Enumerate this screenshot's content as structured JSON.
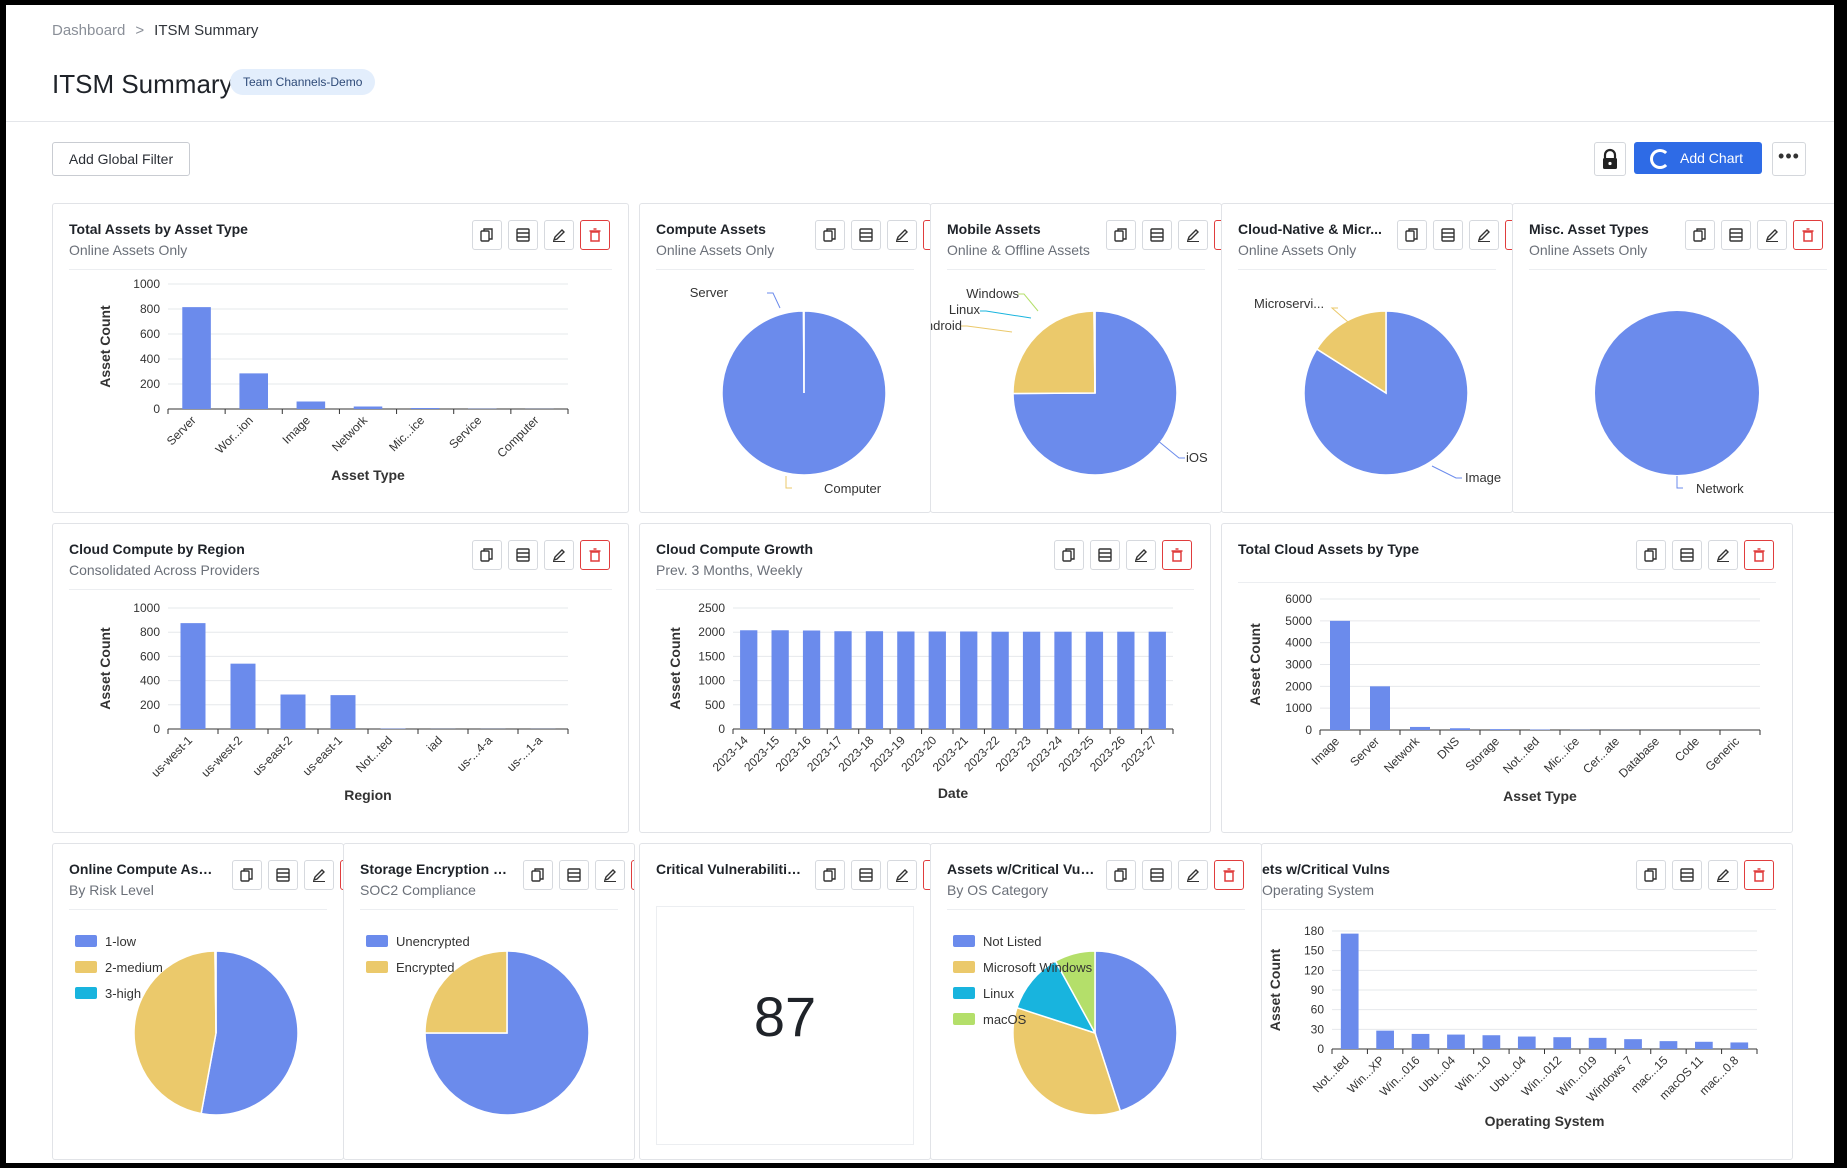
{
  "breadcrumb": {
    "root": "Dashboard",
    "separator": ">",
    "current": "ITSM Summary"
  },
  "header": {
    "title": "ITSM Summary",
    "badge": "Team Channels-Demo"
  },
  "toolbar": {
    "global_filter": "Add Global Filter",
    "add_chart": "Add Chart",
    "more": "•••"
  },
  "colors": {
    "blue": "#6b8bec",
    "yellow": "#ebc96b",
    "cyan": "#18b4de",
    "green": "#b4df6a",
    "delete": "#e03d3d",
    "primary": "#2e6be6"
  },
  "icons": {
    "copy": "copy-icon",
    "table": "table-icon",
    "edit": "pencil-icon",
    "delete": "trash-icon",
    "lock": "lock-icon"
  },
  "cards": {
    "c1": {
      "title": "Total Assets by Asset Type",
      "subtitle": "Online Assets Only",
      "chart_data": {
        "type": "bar",
        "categories": [
          "Server",
          "Wor...ion",
          "Image",
          "Network",
          "Mic...ice",
          "Service",
          "Computer"
        ],
        "values": [
          815,
          285,
          60,
          20,
          8,
          2,
          1
        ],
        "ylim": [
          0,
          1000
        ],
        "yticks": [
          0,
          200,
          400,
          600,
          800,
          1000
        ],
        "ylabel": "Asset Count",
        "xlabel": "Asset Type",
        "grid": true
      }
    },
    "c2": {
      "title": "Compute Assets",
      "subtitle": "Online Assets Only",
      "chart_data": {
        "type": "pie",
        "labels": [
          "Server",
          "Computer"
        ],
        "values": [
          999,
          1
        ]
      }
    },
    "c3": {
      "title": "Mobile Assets",
      "subtitle": "Online & Offline Assets",
      "chart_data": {
        "type": "pie",
        "labels": [
          "iOS",
          "Android",
          "Linux",
          "Windows"
        ],
        "values": [
          749,
          249,
          1,
          1
        ]
      }
    },
    "c4": {
      "title": "Cloud-Native & Micr...",
      "subtitle": "Online Assets Only",
      "chart_data": {
        "type": "pie",
        "labels": [
          "Image",
          "Microservi..."
        ],
        "values": [
          84,
          16
        ]
      }
    },
    "c5": {
      "title": "Misc. Asset Types",
      "subtitle": "Online Assets Only",
      "chart_data": {
        "type": "pie",
        "labels": [
          "Network"
        ],
        "values": [
          100
        ]
      }
    },
    "c6": {
      "title": "Cloud Compute by Region",
      "subtitle": "Consolidated Across Providers",
      "chart_data": {
        "type": "bar",
        "categories": [
          "us-west-1",
          "us-west-2",
          "us-east-2",
          "us-east-1",
          "Not...ted",
          "iad",
          "us-...4-a",
          "us-...1-a"
        ],
        "values": [
          875,
          540,
          285,
          280,
          3,
          1,
          1,
          1
        ],
        "ylim": [
          0,
          1000
        ],
        "yticks": [
          0,
          200,
          400,
          600,
          800,
          1000
        ],
        "ylabel": "Asset Count",
        "xlabel": "Region",
        "grid": true
      }
    },
    "c7": {
      "title": "Cloud Compute Growth",
      "subtitle": "Prev. 3 Months, Weekly",
      "chart_data": {
        "type": "bar",
        "categories": [
          "2023-14",
          "2023-15",
          "2023-16",
          "2023-17",
          "2023-18",
          "2023-19",
          "2023-20",
          "2023-21",
          "2023-22",
          "2023-23",
          "2023-24",
          "2023-25",
          "2023-26",
          "2023-27"
        ],
        "values": [
          2040,
          2040,
          2035,
          2020,
          2020,
          2015,
          2015,
          2015,
          2010,
          2010,
          2010,
          2010,
          2010,
          2010
        ],
        "ylim": [
          0,
          2500
        ],
        "yticks": [
          0,
          500,
          1000,
          1500,
          2000,
          2500
        ],
        "ylabel": "Asset Count",
        "xlabel": "Date",
        "grid": true
      }
    },
    "c8": {
      "title": "Total Cloud Assets by Type",
      "subtitle": "",
      "chart_data": {
        "type": "bar",
        "categories": [
          "Image",
          "Server",
          "Network",
          "DNS",
          "Storage",
          "Not...ted",
          "Mic...ice",
          "Cer...ate",
          "Database",
          "Code",
          "Generic"
        ],
        "values": [
          5000,
          2000,
          140,
          80,
          40,
          20,
          10,
          5,
          3,
          2,
          1
        ],
        "ylim": [
          0,
          6000
        ],
        "yticks": [
          0,
          1000,
          2000,
          3000,
          4000,
          5000,
          6000
        ],
        "ylabel": "Asset Count",
        "xlabel": "Asset Type",
        "grid": true
      }
    },
    "c9": {
      "title": "Online Compute Assets",
      "subtitle": "By Risk Level",
      "chart_data": {
        "type": "pie",
        "labels": [
          "1-low",
          "2-medium",
          "3-high"
        ],
        "values": [
          53,
          47,
          0.2
        ],
        "legend": "top-left"
      }
    },
    "c10": {
      "title": "Storage Encryption S...",
      "subtitle": "SOC2 Compliance",
      "chart_data": {
        "type": "pie",
        "labels": [
          "Unencrypted",
          "Encrypted"
        ],
        "values": [
          75,
          25
        ],
        "legend": "top-left"
      }
    },
    "c11": {
      "title": "Critical Vulnerabilities...",
      "value": "87"
    },
    "c12": {
      "title": "Assets w/Critical Vulns",
      "subtitle": "By OS Category",
      "chart_data": {
        "type": "pie",
        "labels": [
          "Not Listed",
          "Microsoft Windows",
          "Linux",
          "macOS"
        ],
        "values": [
          45,
          35,
          12,
          8
        ],
        "legend": "top-left"
      }
    },
    "c13": {
      "title": "ets w/Critical Vulns",
      "subtitle": "Operating System",
      "chart_data": {
        "type": "bar",
        "categories": [
          "Not...ted",
          "Win...XP",
          "Win...016",
          "Ubu...04",
          "Win...10",
          "Ubu...04",
          "Win...012",
          "Win...019",
          "Windows 7",
          "mac...15",
          "macOS 11",
          "mac...0.8"
        ],
        "values": [
          176,
          28,
          23,
          22,
          21,
          19,
          18,
          17,
          15,
          12,
          11,
          10
        ],
        "ylim": [
          0,
          180
        ],
        "yticks": [
          0,
          30,
          60,
          90,
          120,
          150,
          180
        ],
        "ylabel": "Asset Count",
        "xlabel": "Operating System",
        "grid": true
      }
    }
  }
}
